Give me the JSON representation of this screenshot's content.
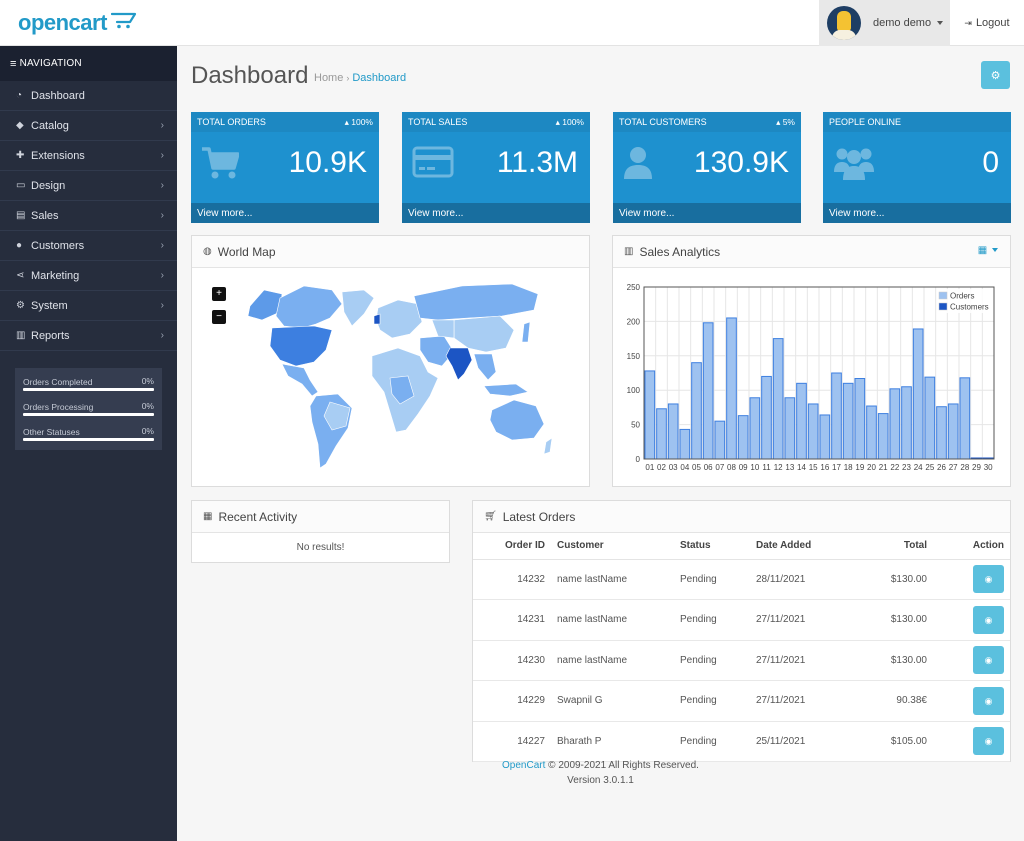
{
  "header": {
    "logo_text": "opencart",
    "user_name": "demo demo",
    "logout_label": "Logout"
  },
  "sidebar": {
    "heading": "NAVIGATION",
    "items": [
      {
        "label": "Dashboard",
        "icon": "dashboard-icon",
        "has_children": false
      },
      {
        "label": "Catalog",
        "icon": "tag-icon",
        "has_children": true
      },
      {
        "label": "Extensions",
        "icon": "puzzle-icon",
        "has_children": true
      },
      {
        "label": "Design",
        "icon": "monitor-icon",
        "has_children": true
      },
      {
        "label": "Sales",
        "icon": "cart-icon",
        "has_children": true
      },
      {
        "label": "Customers",
        "icon": "user-icon",
        "has_children": true
      },
      {
        "label": "Marketing",
        "icon": "share-icon",
        "has_children": true
      },
      {
        "label": "System",
        "icon": "gear-icon",
        "has_children": true
      },
      {
        "label": "Reports",
        "icon": "bar-chart-icon",
        "has_children": true
      }
    ],
    "stats": [
      {
        "label": "Orders Completed",
        "value": "0%"
      },
      {
        "label": "Orders Processing",
        "value": "0%"
      },
      {
        "label": "Other Statuses",
        "value": "0%"
      }
    ]
  },
  "page": {
    "title": "Dashboard",
    "breadcrumb": [
      "Home",
      "Dashboard"
    ]
  },
  "tiles": [
    {
      "title": "TOTAL ORDERS",
      "change": "100%",
      "value": "10.9K",
      "link": "View more...",
      "icon": "cart-icon"
    },
    {
      "title": "TOTAL SALES",
      "change": "100%",
      "value": "11.3M",
      "link": "View more...",
      "icon": "credit-card-icon"
    },
    {
      "title": "TOTAL CUSTOMERS",
      "change": "5%",
      "value": "130.9K",
      "link": "View more...",
      "icon": "user-icon"
    },
    {
      "title": "PEOPLE ONLINE",
      "change": "",
      "value": "0",
      "link": "View more...",
      "icon": "users-icon"
    }
  ],
  "world_map": {
    "title": "World Map",
    "zoom_in": "+",
    "zoom_out": "−",
    "colors": {
      "light": "#a8cdf3",
      "mid": "#7aaff0",
      "dark": "#3d7fe0",
      "darkest": "#1c55c4"
    }
  },
  "sales_analytics": {
    "title": "Sales Analytics"
  },
  "chart_data": {
    "type": "bar",
    "title": "",
    "categories": [
      "01",
      "02",
      "03",
      "04",
      "05",
      "06",
      "07",
      "08",
      "09",
      "10",
      "11",
      "12",
      "13",
      "14",
      "15",
      "16",
      "17",
      "18",
      "19",
      "20",
      "21",
      "22",
      "23",
      "24",
      "25",
      "26",
      "27",
      "28",
      "29",
      "30"
    ],
    "series": [
      {
        "name": "Orders",
        "color": "#9ec2f0",
        "values": [
          128,
          73,
          80,
          43,
          140,
          198,
          55,
          205,
          63,
          89,
          120,
          175,
          89,
          110,
          80,
          64,
          125,
          110,
          117,
          77,
          66,
          102,
          105,
          189,
          119,
          76,
          80,
          118,
          0,
          0
        ]
      },
      {
        "name": "Customers",
        "color": "#1c55c4",
        "values": [
          0,
          0,
          0,
          0,
          0,
          0,
          0,
          0,
          0,
          0,
          0,
          0,
          0,
          0,
          0,
          0,
          0,
          0,
          0,
          0,
          0,
          0,
          0,
          0,
          0,
          0,
          0,
          0,
          0,
          0
        ]
      }
    ],
    "yticks": [
      0,
      50,
      100,
      150,
      200,
      250
    ],
    "ylim": [
      0,
      250
    ],
    "grid": true,
    "legend": "top-right"
  },
  "recent_activity": {
    "title": "Recent Activity",
    "empty_text": "No results!"
  },
  "latest_orders": {
    "title": "Latest Orders",
    "columns": [
      "Order ID",
      "Customer",
      "Status",
      "Date Added",
      "Total",
      "Action"
    ],
    "rows": [
      {
        "id": "14232",
        "customer": "name lastName",
        "status": "Pending",
        "date": "28/11/2021",
        "total": "$130.00"
      },
      {
        "id": "14231",
        "customer": "name lastName",
        "status": "Pending",
        "date": "27/11/2021",
        "total": "$130.00"
      },
      {
        "id": "14230",
        "customer": "name lastName",
        "status": "Pending",
        "date": "27/11/2021",
        "total": "$130.00"
      },
      {
        "id": "14229",
        "customer": "Swapnil G",
        "status": "Pending",
        "date": "27/11/2021",
        "total": "90.38€"
      },
      {
        "id": "14227",
        "customer": "Bharath P",
        "status": "Pending",
        "date": "25/11/2021",
        "total": "$105.00"
      }
    ]
  },
  "footer": {
    "brand": "OpenCart",
    "copyright": " © 2009-2021 All Rights Reserved.",
    "version": "Version 3.0.1.1"
  },
  "colors": {
    "accent": "#229ac8",
    "tile_blue": "#1e91cf",
    "sidebar_bg": "#262d3d",
    "info_button": "#5bc0de"
  }
}
